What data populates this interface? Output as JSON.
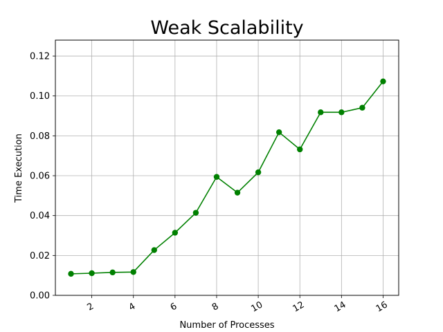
{
  "chart_data": {
    "type": "line",
    "title": "Weak Scalability",
    "xlabel": "Number of Processes",
    "ylabel": "Time Execution",
    "xlim": [
      0.25,
      16.75
    ],
    "ylim": [
      0.0,
      0.128
    ],
    "xticks": [
      2,
      4,
      6,
      8,
      10,
      12,
      14,
      16
    ],
    "xtick_labels": [
      "2",
      "4",
      "6",
      "8",
      "10",
      "12",
      "14",
      "16"
    ],
    "xtick_rotation": -30,
    "yticks": [
      0.0,
      0.02,
      0.04,
      0.06,
      0.08,
      0.1,
      0.12
    ],
    "ytick_labels": [
      "0.00",
      "0.02",
      "0.04",
      "0.06",
      "0.08",
      "0.10",
      "0.12"
    ],
    "grid": true,
    "series": [
      {
        "color": "#008000",
        "marker": "circle",
        "x": [
          1,
          2,
          3,
          4,
          5,
          6,
          7,
          8,
          9,
          10,
          11,
          12,
          13,
          14,
          15,
          16
        ],
        "y": [
          0.0108,
          0.0111,
          0.0115,
          0.0117,
          0.0227,
          0.0314,
          0.0414,
          0.0594,
          0.0515,
          0.0617,
          0.0818,
          0.0732,
          0.0918,
          0.0918,
          0.0941,
          0.1073
        ]
      }
    ]
  }
}
